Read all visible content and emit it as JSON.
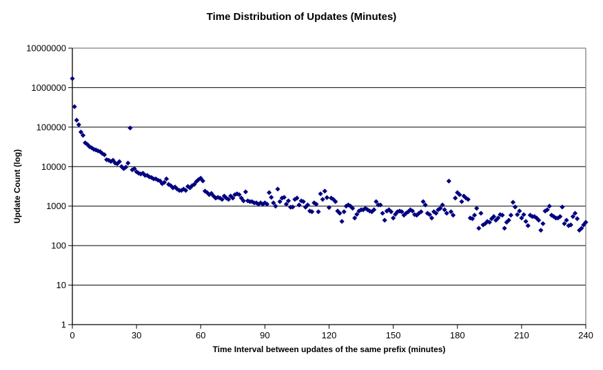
{
  "window": {
    "background": "#FFFFFF"
  },
  "chart_data": {
    "type": "scatter",
    "title": "Time Distribution of Updates (Minutes)",
    "xlabel": "Time Interval between updates of the same prefix (minutes)",
    "ylabel": "Update Count (log)",
    "legend": "none",
    "grid": "horizontal-major",
    "y_scale": "log",
    "xlim": [
      0,
      240
    ],
    "ylim_log": [
      1,
      10000000
    ],
    "x_ticks": [
      0,
      30,
      60,
      90,
      120,
      150,
      180,
      210,
      240
    ],
    "y_ticks": [
      1,
      10,
      100,
      1000,
      10000,
      100000,
      1000000,
      10000000
    ],
    "marker": "diamond",
    "marker_color": "#000080",
    "gridline_color": "#000000",
    "border_color": "#808080",
    "axis_color": "#000000",
    "points": [
      [
        0,
        1700000
      ],
      [
        1,
        330000
      ],
      [
        2,
        150000
      ],
      [
        3,
        115000
      ],
      [
        4,
        75000
      ],
      [
        5,
        62000
      ],
      [
        6,
        40000
      ],
      [
        7,
        36500
      ],
      [
        8,
        32000
      ],
      [
        9,
        30000
      ],
      [
        10,
        27500
      ],
      [
        11,
        26500
      ],
      [
        12,
        25000
      ],
      [
        13,
        24000
      ],
      [
        14,
        21500
      ],
      [
        15,
        20000
      ],
      [
        16,
        15000
      ],
      [
        17,
        14500
      ],
      [
        18,
        13500
      ],
      [
        19,
        14500
      ],
      [
        20,
        12300
      ],
      [
        21,
        11800
      ],
      [
        22,
        13400
      ],
      [
        23,
        10000
      ],
      [
        24,
        8900
      ],
      [
        25,
        9700
      ],
      [
        26,
        12300
      ],
      [
        27,
        95000
      ],
      [
        28,
        8300
      ],
      [
        29,
        8900
      ],
      [
        30,
        7400
      ],
      [
        31,
        6800
      ],
      [
        32,
        6500
      ],
      [
        33,
        6800
      ],
      [
        34,
        6000
      ],
      [
        35,
        6000
      ],
      [
        36,
        5500
      ],
      [
        37,
        5300
      ],
      [
        38,
        4900
      ],
      [
        39,
        4900
      ],
      [
        40,
        4550
      ],
      [
        41,
        4350
      ],
      [
        42,
        3700
      ],
      [
        43,
        4000
      ],
      [
        44,
        4900
      ],
      [
        45,
        3550
      ],
      [
        46,
        3300
      ],
      [
        47,
        2900
      ],
      [
        48,
        3050
      ],
      [
        49,
        2700
      ],
      [
        50,
        2500
      ],
      [
        51,
        2500
      ],
      [
        52,
        2700
      ],
      [
        53,
        2500
      ],
      [
        54,
        3150
      ],
      [
        55,
        2900
      ],
      [
        56,
        3300
      ],
      [
        57,
        3550
      ],
      [
        58,
        4200
      ],
      [
        59,
        4700
      ],
      [
        60,
        5100
      ],
      [
        61,
        4350
      ],
      [
        62,
        2400
      ],
      [
        63,
        2200
      ],
      [
        64,
        1950
      ],
      [
        65,
        2100
      ],
      [
        66,
        1800
      ],
      [
        67,
        1600
      ],
      [
        68,
        1670
      ],
      [
        69,
        1600
      ],
      [
        70,
        1480
      ],
      [
        71,
        1800
      ],
      [
        72,
        1600
      ],
      [
        73,
        1480
      ],
      [
        74,
        1800
      ],
      [
        75,
        1600
      ],
      [
        76,
        1950
      ],
      [
        77,
        2050
      ],
      [
        78,
        1950
      ],
      [
        79,
        1600
      ],
      [
        80,
        1360
      ],
      [
        81,
        2300
      ],
      [
        82,
        1360
      ],
      [
        83,
        1300
      ],
      [
        84,
        1300
      ],
      [
        85,
        1210
      ],
      [
        86,
        1210
      ],
      [
        87,
        1120
      ],
      [
        88,
        1210
      ],
      [
        89,
        1120
      ],
      [
        90,
        1210
      ],
      [
        91,
        1120
      ],
      [
        92,
        2200
      ],
      [
        93,
        1670
      ],
      [
        94,
        1210
      ],
      [
        95,
        1000
      ],
      [
        96,
        2700
      ],
      [
        97,
        1300
      ],
      [
        98,
        1600
      ],
      [
        99,
        1670
      ],
      [
        100,
        1120
      ],
      [
        101,
        1360
      ],
      [
        102,
        940
      ],
      [
        103,
        950
      ],
      [
        104,
        1480
      ],
      [
        105,
        1600
      ],
      [
        106,
        1070
      ],
      [
        107,
        1360
      ],
      [
        108,
        1300
      ],
      [
        109,
        940
      ],
      [
        110,
        1070
      ],
      [
        111,
        750
      ],
      [
        112,
        720
      ],
      [
        113,
        1210
      ],
      [
        114,
        1120
      ],
      [
        115,
        720
      ],
      [
        116,
        2050
      ],
      [
        117,
        1480
      ],
      [
        118,
        2400
      ],
      [
        119,
        1650
      ],
      [
        120,
        920
      ],
      [
        121,
        1600
      ],
      [
        122,
        1480
      ],
      [
        123,
        1300
      ],
      [
        124,
        750
      ],
      [
        125,
        660
      ],
      [
        126,
        410
      ],
      [
        127,
        720
      ],
      [
        128,
        1000
      ],
      [
        129,
        1070
      ],
      [
        130,
        1000
      ],
      [
        131,
        880
      ],
      [
        132,
        500
      ],
      [
        133,
        620
      ],
      [
        134,
        750
      ],
      [
        135,
        810
      ],
      [
        136,
        810
      ],
      [
        137,
        880
      ],
      [
        138,
        810
      ],
      [
        139,
        750
      ],
      [
        140,
        720
      ],
      [
        141,
        810
      ],
      [
        142,
        1300
      ],
      [
        143,
        1070
      ],
      [
        144,
        1070
      ],
      [
        145,
        660
      ],
      [
        146,
        440
      ],
      [
        147,
        750
      ],
      [
        148,
        810
      ],
      [
        149,
        720
      ],
      [
        150,
        500
      ],
      [
        151,
        620
      ],
      [
        152,
        720
      ],
      [
        153,
        750
      ],
      [
        154,
        720
      ],
      [
        155,
        590
      ],
      [
        156,
        660
      ],
      [
        157,
        720
      ],
      [
        158,
        810
      ],
      [
        159,
        750
      ],
      [
        160,
        610
      ],
      [
        161,
        590
      ],
      [
        162,
        660
      ],
      [
        163,
        720
      ],
      [
        164,
        1300
      ],
      [
        165,
        1070
      ],
      [
        166,
        660
      ],
      [
        167,
        610
      ],
      [
        168,
        500
      ],
      [
        169,
        720
      ],
      [
        170,
        660
      ],
      [
        171,
        810
      ],
      [
        172,
        880
      ],
      [
        173,
        1070
      ],
      [
        174,
        810
      ],
      [
        175,
        660
      ],
      [
        176,
        4300
      ],
      [
        177,
        720
      ],
      [
        178,
        590
      ],
      [
        179,
        1600
      ],
      [
        180,
        2200
      ],
      [
        181,
        1950
      ],
      [
        182,
        1300
      ],
      [
        183,
        1800
      ],
      [
        184,
        1600
      ],
      [
        185,
        1480
      ],
      [
        186,
        500
      ],
      [
        187,
        480
      ],
      [
        188,
        590
      ],
      [
        189,
        880
      ],
      [
        190,
        275
      ],
      [
        191,
        660
      ],
      [
        192,
        335
      ],
      [
        193,
        360
      ],
      [
        194,
        410
      ],
      [
        195,
        390
      ],
      [
        196,
        480
      ],
      [
        197,
        545
      ],
      [
        198,
        440
      ],
      [
        199,
        500
      ],
      [
        200,
        610
      ],
      [
        201,
        590
      ],
      [
        202,
        275
      ],
      [
        203,
        390
      ],
      [
        204,
        440
      ],
      [
        205,
        590
      ],
      [
        206,
        1250
      ],
      [
        207,
        950
      ],
      [
        208,
        610
      ],
      [
        209,
        750
      ],
      [
        210,
        500
      ],
      [
        211,
        610
      ],
      [
        212,
        410
      ],
      [
        213,
        320
      ],
      [
        214,
        590
      ],
      [
        215,
        545
      ],
      [
        216,
        545
      ],
      [
        217,
        500
      ],
      [
        218,
        440
      ],
      [
        219,
        245
      ],
      [
        220,
        360
      ],
      [
        221,
        750
      ],
      [
        222,
        810
      ],
      [
        223,
        1000
      ],
      [
        224,
        590
      ],
      [
        225,
        545
      ],
      [
        226,
        500
      ],
      [
        227,
        500
      ],
      [
        228,
        545
      ],
      [
        229,
        950
      ],
      [
        230,
        360
      ],
      [
        231,
        440
      ],
      [
        232,
        320
      ],
      [
        233,
        335
      ],
      [
        234,
        545
      ],
      [
        235,
        660
      ],
      [
        236,
        480
      ],
      [
        237,
        245
      ],
      [
        238,
        275
      ],
      [
        239,
        335
      ],
      [
        240,
        390
      ]
    ]
  }
}
